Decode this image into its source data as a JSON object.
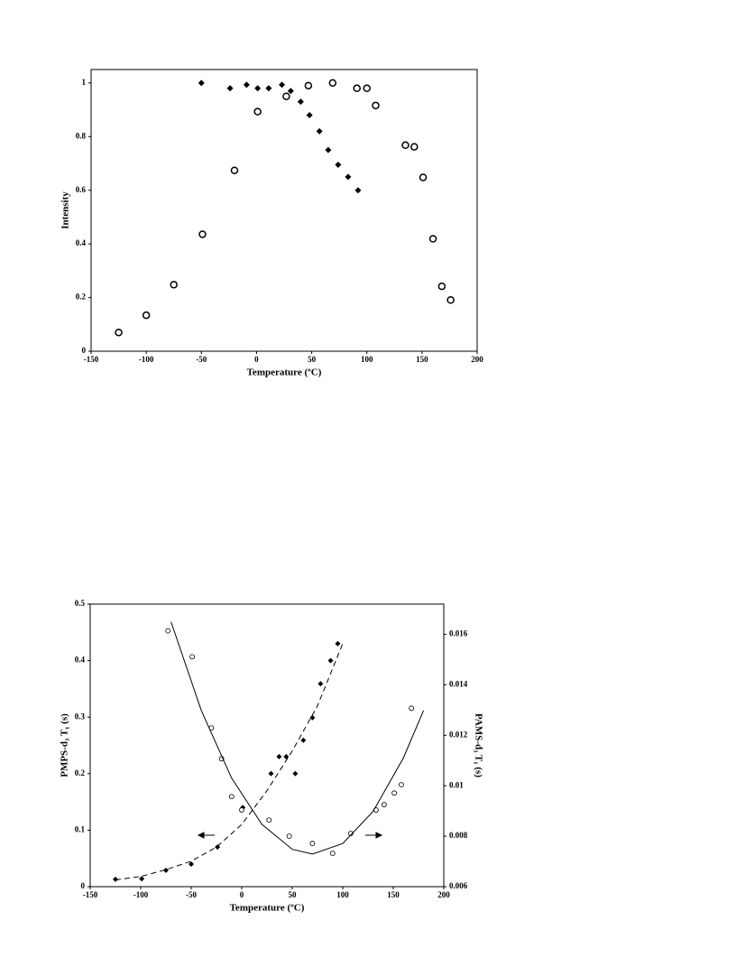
{
  "chart_data": [
    {
      "type": "scatter",
      "x_label": "Temperature (ºC)",
      "y_label": "Intensity",
      "xlim": [
        -150,
        200
      ],
      "xticks": [
        -150,
        -100,
        -50,
        0,
        50,
        100,
        150,
        200
      ],
      "ylim": [
        0,
        1.05
      ],
      "yticks": [
        0,
        0.2,
        0.4,
        0.6,
        0.8,
        1
      ],
      "series": [
        {
          "marker": "diamond",
          "color": "#000000",
          "x": [
            -50,
            -24,
            -9,
            1,
            11,
            23,
            31,
            40,
            48,
            57,
            65,
            74,
            83,
            92
          ],
          "values": [
            1.0,
            0.98,
            0.993,
            0.98,
            0.98,
            0.993,
            0.97,
            0.93,
            0.88,
            0.82,
            0.75,
            0.695,
            0.65,
            0.6
          ]
        },
        {
          "marker": "circle",
          "color": "#000000",
          "x": [
            -125,
            -100,
            -75,
            -49,
            -20,
            1,
            27,
            47,
            69,
            91,
            100,
            108,
            135,
            143,
            151,
            160,
            168,
            176
          ],
          "values": [
            0.07,
            0.134,
            0.248,
            0.436,
            0.674,
            0.893,
            0.95,
            0.99,
            1.0,
            0.98,
            0.98,
            0.916,
            0.768,
            0.762,
            0.648,
            0.419,
            0.242,
            0.191
          ]
        }
      ]
    },
    {
      "type": "scatter",
      "x_label": "Temperature (ºC)",
      "y_label": "PMPS-d₃ T₁ (s)",
      "y2_label": "PAMS-d₃ T₁ (s)",
      "xlim": [
        -150,
        200
      ],
      "xticks": [
        -150,
        -100,
        -50,
        0,
        50,
        100,
        150,
        200
      ],
      "ylim": [
        0,
        0.5
      ],
      "yticks": [
        0,
        0.1,
        0.2,
        0.3,
        0.4,
        0.5
      ],
      "y2lim": [
        0.006,
        0.0172
      ],
      "y2ticks": [
        0.006,
        0.008,
        0.01,
        0.012,
        0.014,
        0.016
      ],
      "series": [
        {
          "marker": "diamond",
          "color": "#000000",
          "x": [
            -125,
            -99,
            -75,
            -50,
            -24,
            1,
            29,
            37,
            44,
            53,
            61,
            70,
            78,
            88,
            95
          ],
          "values": [
            0.013,
            0.014,
            0.029,
            0.04,
            0.07,
            0.14,
            0.2,
            0.23,
            0.23,
            0.2,
            0.259,
            0.299,
            0.359,
            0.4,
            0.43
          ]
        },
        {
          "marker": "circle",
          "color": "#000000",
          "axis": "y2",
          "x": [
            -73,
            -49,
            -30,
            -20,
            -10,
            0,
            27,
            47,
            70,
            90,
            108,
            133,
            141,
            151,
            158,
            168
          ],
          "values": [
            0.01614,
            0.01511,
            0.01229,
            0.01107,
            0.00957,
            0.00904,
            0.00864,
            0.008,
            0.00771,
            0.00732,
            0.00811,
            0.00904,
            0.00925,
            0.00971,
            0.01004,
            0.01307
          ]
        },
        {
          "marker": "none",
          "line_style": "dashed",
          "color": "#000000",
          "x": [
            -125,
            -100,
            -75,
            -50,
            -25,
            0,
            25,
            50,
            75,
            100
          ],
          "values": [
            0.012,
            0.018,
            0.03,
            0.045,
            0.07,
            0.11,
            0.17,
            0.24,
            0.32,
            0.43
          ]
        },
        {
          "marker": "none",
          "line_style": "solid",
          "color": "#000000",
          "axis": "y2",
          "x": [
            -70,
            -40,
            -10,
            20,
            50,
            70,
            100,
            130,
            160,
            180
          ],
          "values": [
            0.0165,
            0.01298,
            0.0103,
            0.00847,
            0.00748,
            0.00729,
            0.00771,
            0.00898,
            0.0111,
            0.01298
          ]
        }
      ]
    }
  ]
}
